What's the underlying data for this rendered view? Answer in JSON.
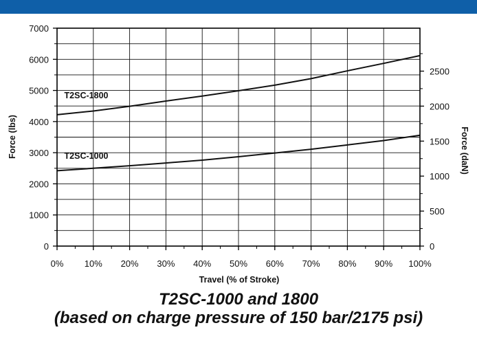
{
  "header": {
    "bar_color": "#0f5fa8"
  },
  "chart_data": {
    "type": "line",
    "title": "T2SC-1000 and 1800",
    "subtitle": "(based on charge pressure of 150 bar/2175 psi)",
    "xlabel": "Travel (% of Stroke)",
    "ylabel": "Force (lbs)",
    "y2label": "Force (daN)",
    "x": [
      0,
      10,
      20,
      30,
      40,
      50,
      60,
      70,
      80,
      90,
      100
    ],
    "x_tick_labels": [
      "0%",
      "10%",
      "20%",
      "30%",
      "40%",
      "50%",
      "60%",
      "70%",
      "80%",
      "90%",
      "100%"
    ],
    "xlim": [
      0,
      100
    ],
    "ylim": [
      0,
      7000
    ],
    "y_ticks": [
      0,
      1000,
      2000,
      3000,
      4000,
      5000,
      6000,
      7000
    ],
    "y_tick_labels": [
      "0",
      "1000",
      "2000",
      "3000",
      "4000",
      "5000",
      "6000",
      "7000"
    ],
    "y2lim": [
      0,
      3113.75
    ],
    "y2_ticks": [
      0,
      500,
      1000,
      1500,
      2000,
      2500
    ],
    "y2_tick_labels": [
      "0",
      "500",
      "1000",
      "1500",
      "2000",
      "2500"
    ],
    "grid": true,
    "series": [
      {
        "name": "T2SC-1800",
        "values": [
          4220,
          4340,
          4490,
          4660,
          4820,
          4990,
          5170,
          5380,
          5630,
          5870,
          6120
        ]
      },
      {
        "name": "T2SC-1000",
        "values": [
          2420,
          2500,
          2580,
          2670,
          2760,
          2870,
          2990,
          3110,
          3250,
          3390,
          3560
        ]
      }
    ],
    "series_label_positions": [
      {
        "name": "T2SC-1800",
        "x": 2,
        "y": 4750
      },
      {
        "name": "T2SC-1000",
        "x": 2,
        "y": 2800
      }
    ]
  }
}
